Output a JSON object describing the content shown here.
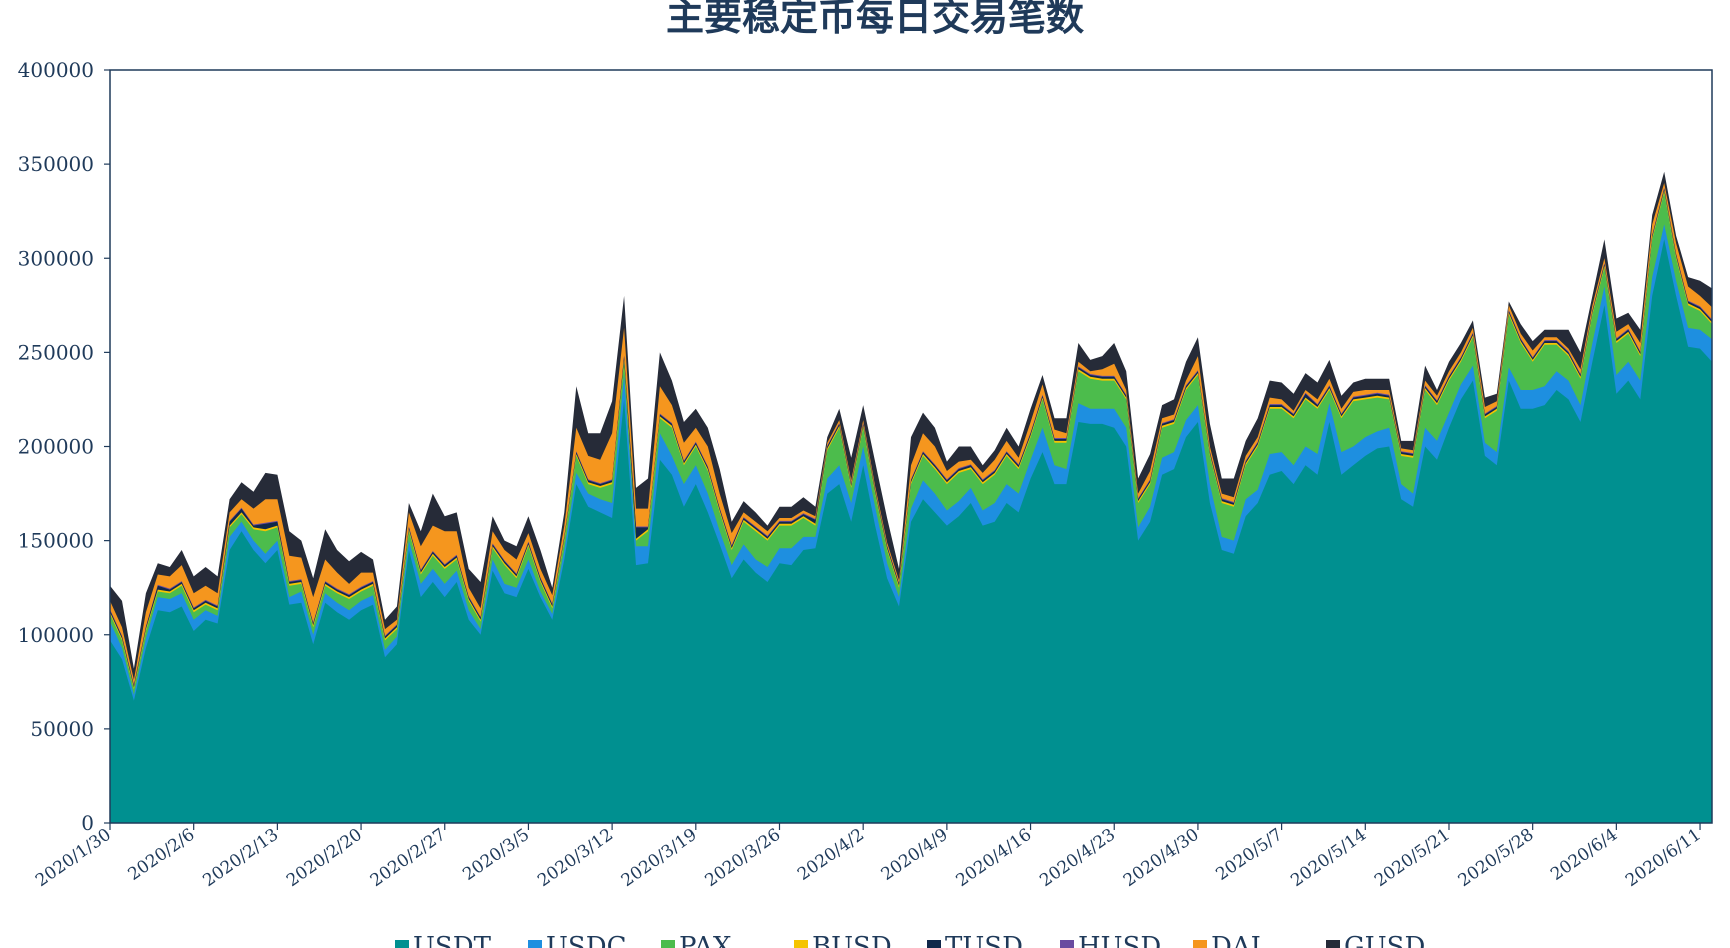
{
  "chart_data": {
    "type": "area",
    "stacked": true,
    "title": "主要稳定币每日交易笔数",
    "xlabel": "",
    "ylabel": "",
    "ylim": [
      0,
      400000
    ],
    "yticks": [
      0,
      50000,
      100000,
      150000,
      200000,
      250000,
      300000,
      350000,
      400000
    ],
    "grid": false,
    "legend_position": "bottom",
    "x_range": [
      "2020/1/30",
      "2020/6/11"
    ],
    "x_ticks": [
      "2020/1/30",
      "2020/2/6",
      "2020/2/13",
      "2020/2/20",
      "2020/2/27",
      "2020/3/5",
      "2020/3/12",
      "2020/3/19",
      "2020/3/26",
      "2020/4/2",
      "2020/4/9",
      "2020/4/16",
      "2020/4/23",
      "2020/4/30",
      "2020/5/7",
      "2020/5/14",
      "2020/5/21",
      "2020/5/28",
      "2020/6/4",
      "2020/6/11"
    ],
    "series": [
      {
        "name": "USDT",
        "color": "#009090"
      },
      {
        "name": "USDC",
        "color": "#1e8fe0"
      },
      {
        "name": "PAX",
        "color": "#4cbc4c"
      },
      {
        "name": "BUSD",
        "color": "#f5c400"
      },
      {
        "name": "TUSD",
        "color": "#10284a"
      },
      {
        "name": "HUSD",
        "color": "#6a4ba0"
      },
      {
        "name": "DAI",
        "color": "#f5961e"
      },
      {
        "name": "GUSD",
        "color": "#262b38"
      }
    ],
    "cumulative_values": {
      "USDT": [
        97000,
        87000,
        65000,
        93000,
        113000,
        112000,
        115000,
        102000,
        108000,
        106000,
        145000,
        155000,
        145000,
        138000,
        145000,
        116000,
        117000,
        95000,
        117000,
        112000,
        108000,
        113000,
        116000,
        88000,
        95000,
        145000,
        120000,
        128000,
        120000,
        128000,
        108000,
        100000,
        134000,
        122000,
        120000,
        135000,
        120000,
        108000,
        140000,
        180000,
        168000,
        165000,
        162000,
        225000,
        137000,
        138000,
        193000,
        185000,
        168000,
        180000,
        165000,
        148000,
        130000,
        140000,
        133000,
        128000,
        138000,
        137000,
        145000,
        146000,
        175000,
        180000,
        160000,
        190000,
        158000,
        130000,
        115000,
        160000,
        172000,
        165000,
        158000,
        163000,
        170000,
        158000,
        160000,
        170000,
        165000,
        183000,
        197000,
        180000,
        180000,
        213000,
        212000,
        212000,
        210000,
        200000,
        150000,
        160000,
        185000,
        188000,
        205000,
        213000,
        170000,
        145000,
        143000,
        163000,
        170000,
        185000,
        187000,
        180000,
        190000,
        185000,
        213000,
        185000,
        190000,
        195000,
        199000,
        200000,
        172000,
        168000,
        200000,
        193000,
        210000,
        225000,
        235000,
        195000,
        190000,
        235000,
        220000,
        220000,
        222000,
        230000,
        225000,
        213000,
        245000,
        275000,
        228000,
        235000,
        225000,
        280000,
        310000,
        280000,
        253000,
        252000,
        245000
      ],
      "USDC": [
        107000,
        93000,
        68000,
        98000,
        120000,
        119000,
        122000,
        108000,
        113000,
        110000,
        152000,
        160000,
        150000,
        143000,
        150000,
        120000,
        123000,
        100000,
        122000,
        117000,
        113000,
        118000,
        121000,
        92000,
        99000,
        150000,
        127000,
        135000,
        127000,
        134000,
        113000,
        103000,
        140000,
        127000,
        125000,
        140000,
        123000,
        111000,
        145000,
        186000,
        175000,
        172000,
        170000,
        238000,
        147000,
        147000,
        207000,
        195000,
        180000,
        190000,
        175000,
        155000,
        137000,
        148000,
        140000,
        136000,
        146000,
        146000,
        152000,
        152000,
        183000,
        190000,
        170000,
        200000,
        168000,
        138000,
        120000,
        167000,
        182000,
        175000,
        166000,
        171000,
        178000,
        166000,
        170000,
        180000,
        175000,
        193000,
        210000,
        190000,
        188000,
        223000,
        220000,
        220000,
        220000,
        210000,
        157000,
        168000,
        194000,
        197000,
        214000,
        222000,
        180000,
        152000,
        150000,
        172000,
        177000,
        196000,
        197000,
        190000,
        200000,
        196000,
        223000,
        197000,
        200000,
        205000,
        208000,
        210000,
        180000,
        175000,
        210000,
        203000,
        218000,
        233000,
        243000,
        202000,
        197000,
        242000,
        230000,
        230000,
        232000,
        240000,
        235000,
        222000,
        255000,
        285000,
        238000,
        245000,
        235000,
        290000,
        318000,
        288000,
        263000,
        262000,
        257000
      ],
      "PAX": [
        111000,
        97000,
        71000,
        102000,
        123000,
        122000,
        126000,
        112000,
        116000,
        113000,
        157000,
        164000,
        156000,
        155000,
        157000,
        126000,
        127000,
        104000,
        126000,
        122000,
        119000,
        123000,
        126000,
        97000,
        103000,
        155000,
        132000,
        142000,
        135000,
        140000,
        118000,
        107000,
        146000,
        137000,
        130000,
        147000,
        128000,
        114000,
        150000,
        195000,
        180000,
        178000,
        180000,
        245000,
        150000,
        155000,
        215000,
        210000,
        190000,
        200000,
        187000,
        165000,
        145000,
        160000,
        155000,
        150000,
        158000,
        158000,
        162000,
        158000,
        198000,
        210000,
        178000,
        210000,
        175000,
        145000,
        125000,
        180000,
        195000,
        188000,
        180000,
        186000,
        188000,
        180000,
        185000,
        195000,
        188000,
        205000,
        225000,
        202000,
        202000,
        240000,
        236000,
        235000,
        235000,
        225000,
        170000,
        180000,
        210000,
        212000,
        230000,
        238000,
        195000,
        170000,
        168000,
        190000,
        200000,
        220000,
        220000,
        215000,
        225000,
        220000,
        230000,
        215000,
        224000,
        225000,
        226000,
        225000,
        195000,
        194000,
        230000,
        222000,
        235000,
        245000,
        258000,
        215000,
        219000,
        270000,
        255000,
        245000,
        254000,
        254000,
        248000,
        236000,
        270000,
        295000,
        255000,
        260000,
        248000,
        310000,
        335000,
        300000,
        275000,
        272000,
        265000
      ],
      "BUSD": [
        112000,
        98000,
        72000,
        103000,
        124000,
        123000,
        127000,
        113000,
        117000,
        114000,
        158000,
        165000,
        157000,
        156000,
        158000,
        127000,
        128000,
        105000,
        127000,
        123000,
        120000,
        124000,
        127000,
        98000,
        104000,
        156000,
        133000,
        143000,
        136000,
        141000,
        119000,
        108000,
        147000,
        138000,
        131000,
        148000,
        129000,
        115000,
        151000,
        196000,
        181000,
        179000,
        181000,
        246000,
        151000,
        156000,
        216000,
        211000,
        191000,
        201000,
        188000,
        166000,
        146000,
        161000,
        156000,
        151000,
        159000,
        159000,
        163000,
        159000,
        199000,
        211000,
        179000,
        211000,
        176000,
        146000,
        126000,
        181000,
        196000,
        189000,
        181000,
        187000,
        189000,
        181000,
        186000,
        196000,
        189000,
        206000,
        226000,
        203000,
        203000,
        241000,
        237000,
        236000,
        236000,
        226000,
        171000,
        181000,
        211000,
        213000,
        231000,
        239000,
        196000,
        171000,
        169000,
        191000,
        201000,
        221000,
        221000,
        216000,
        226000,
        221000,
        231000,
        216000,
        225000,
        226000,
        227000,
        226000,
        196000,
        195000,
        231000,
        223000,
        236000,
        246000,
        259000,
        216000,
        220000,
        271000,
        256000,
        246000,
        255000,
        255000,
        249000,
        237000,
        271000,
        296000,
        256000,
        261000,
        249000,
        311000,
        336000,
        301000,
        276000,
        273000,
        266000
      ],
      "TUSD": [
        113000,
        99000,
        73000,
        104000,
        126000,
        124000,
        128000,
        114000,
        118000,
        115000,
        160000,
        167000,
        158000,
        159000,
        160000,
        128000,
        129000,
        106000,
        128000,
        124000,
        121000,
        125000,
        128000,
        99000,
        105000,
        157000,
        134000,
        144000,
        137000,
        142000,
        120000,
        109000,
        148000,
        139000,
        132000,
        149000,
        130000,
        116000,
        152000,
        197000,
        182000,
        180000,
        182000,
        248000,
        157000,
        157000,
        217000,
        212000,
        192000,
        202000,
        189000,
        167000,
        147000,
        162000,
        157000,
        152000,
        160000,
        160000,
        164000,
        161000,
        200000,
        212000,
        180000,
        212000,
        177000,
        147000,
        127000,
        182000,
        197000,
        190000,
        182000,
        188000,
        190000,
        182000,
        187000,
        197000,
        190000,
        207000,
        227000,
        204000,
        204000,
        242000,
        238000,
        237000,
        237000,
        227000,
        172000,
        182000,
        212000,
        214000,
        232000,
        240000,
        197000,
        172000,
        170000,
        192000,
        202000,
        222000,
        222000,
        217000,
        228000,
        222000,
        232000,
        217000,
        226000,
        227000,
        228000,
        227000,
        197000,
        196000,
        232000,
        224000,
        237000,
        247000,
        260000,
        217000,
        221000,
        272000,
        257000,
        247000,
        256000,
        256000,
        250000,
        238000,
        272000,
        297000,
        257000,
        262000,
        250000,
        312000,
        337000,
        302000,
        277000,
        274000,
        267000
      ],
      "HUSD": [
        113500,
        99500,
        73500,
        104500,
        126500,
        124500,
        128500,
        114500,
        118500,
        115500,
        160500,
        167500,
        158500,
        159500,
        160500,
        128500,
        129500,
        106500,
        128500,
        124500,
        121500,
        125500,
        128500,
        99500,
        105500,
        157500,
        134500,
        144500,
        137500,
        142500,
        120500,
        109500,
        148500,
        139500,
        132500,
        149500,
        130500,
        116500,
        152500,
        197500,
        182500,
        180500,
        182500,
        248500,
        157500,
        157500,
        217500,
        212500,
        192500,
        202500,
        189500,
        167500,
        147500,
        162500,
        157500,
        152500,
        160500,
        160500,
        164500,
        161500,
        200500,
        212500,
        180500,
        212500,
        177500,
        147500,
        127500,
        182500,
        197500,
        190500,
        182500,
        188500,
        190500,
        182500,
        187500,
        197500,
        190500,
        207500,
        227500,
        204500,
        204500,
        242500,
        238500,
        237500,
        237500,
        227500,
        172500,
        182500,
        212500,
        214500,
        232500,
        240500,
        197500,
        172500,
        170500,
        192500,
        202500,
        222500,
        222500,
        217500,
        228500,
        222500,
        232500,
        217500,
        226500,
        227500,
        228500,
        227500,
        197500,
        196500,
        232500,
        224500,
        237500,
        247500,
        260500,
        217500,
        221500,
        272500,
        257500,
        247500,
        256500,
        256500,
        250500,
        238500,
        272500,
        297500,
        257500,
        262500,
        250500,
        312500,
        337500,
        302500,
        277500,
        274500,
        267500
      ],
      "DAI": [
        118000,
        104000,
        76000,
        112000,
        132000,
        131000,
        137000,
        122000,
        126000,
        122000,
        165000,
        172000,
        167000,
        172000,
        172000,
        142000,
        141000,
        120000,
        140000,
        133000,
        127000,
        133000,
        133000,
        103000,
        108000,
        165000,
        147000,
        158000,
        155000,
        155000,
        125000,
        114000,
        155000,
        145000,
        140000,
        154000,
        135000,
        121000,
        158000,
        210000,
        195000,
        193000,
        207000,
        263000,
        167000,
        167000,
        232000,
        222000,
        202000,
        210000,
        200000,
        175000,
        154000,
        165000,
        160000,
        155000,
        162000,
        162000,
        166000,
        163000,
        202000,
        214000,
        182000,
        214000,
        179000,
        149000,
        129000,
        190000,
        207000,
        200000,
        187000,
        192000,
        193000,
        186000,
        193000,
        203000,
        194000,
        213000,
        233000,
        209000,
        207000,
        245000,
        240000,
        241000,
        244000,
        230000,
        175000,
        187000,
        215000,
        217000,
        235000,
        248000,
        200000,
        175000,
        173000,
        195000,
        205000,
        226000,
        225000,
        219000,
        230000,
        225000,
        236000,
        220000,
        229000,
        230000,
        230000,
        230000,
        199000,
        198000,
        235000,
        227000,
        240000,
        250000,
        263000,
        221000,
        224000,
        275000,
        260000,
        251000,
        258000,
        258000,
        252000,
        241000,
        275000,
        300000,
        261000,
        265000,
        255000,
        318000,
        340000,
        308000,
        285000,
        280000,
        274000
      ],
      "GUSD": [
        126000,
        118000,
        82000,
        122000,
        138000,
        136000,
        145000,
        131000,
        136000,
        131000,
        172000,
        181000,
        176000,
        186000,
        185000,
        155000,
        150000,
        130000,
        156000,
        145000,
        139000,
        144000,
        140000,
        108000,
        115000,
        170000,
        155000,
        175000,
        163000,
        165000,
        135000,
        128000,
        163000,
        150000,
        147000,
        163000,
        145000,
        125000,
        165000,
        232000,
        207000,
        207000,
        224000,
        280000,
        178000,
        183000,
        250000,
        235000,
        213000,
        220000,
        210000,
        188000,
        160000,
        171000,
        165000,
        158000,
        168000,
        168000,
        173000,
        168000,
        205000,
        220000,
        194000,
        222000,
        192000,
        162000,
        135000,
        205000,
        218000,
        210000,
        192000,
        200000,
        200000,
        190000,
        198000,
        210000,
        200000,
        220000,
        238000,
        215000,
        215000,
        255000,
        246000,
        248000,
        255000,
        240000,
        183000,
        196000,
        222000,
        225000,
        245000,
        258000,
        212000,
        183000,
        183000,
        203000,
        215000,
        235000,
        234000,
        228000,
        239000,
        234000,
        246000,
        227000,
        234000,
        236000,
        236000,
        236000,
        203000,
        203000,
        243000,
        230000,
        245000,
        255000,
        267000,
        226000,
        228000,
        277000,
        265000,
        256000,
        262000,
        262000,
        262000,
        250000,
        280000,
        310000,
        268000,
        271000,
        262000,
        323000,
        346000,
        312000,
        290000,
        288000,
        284000
      ]
    }
  }
}
